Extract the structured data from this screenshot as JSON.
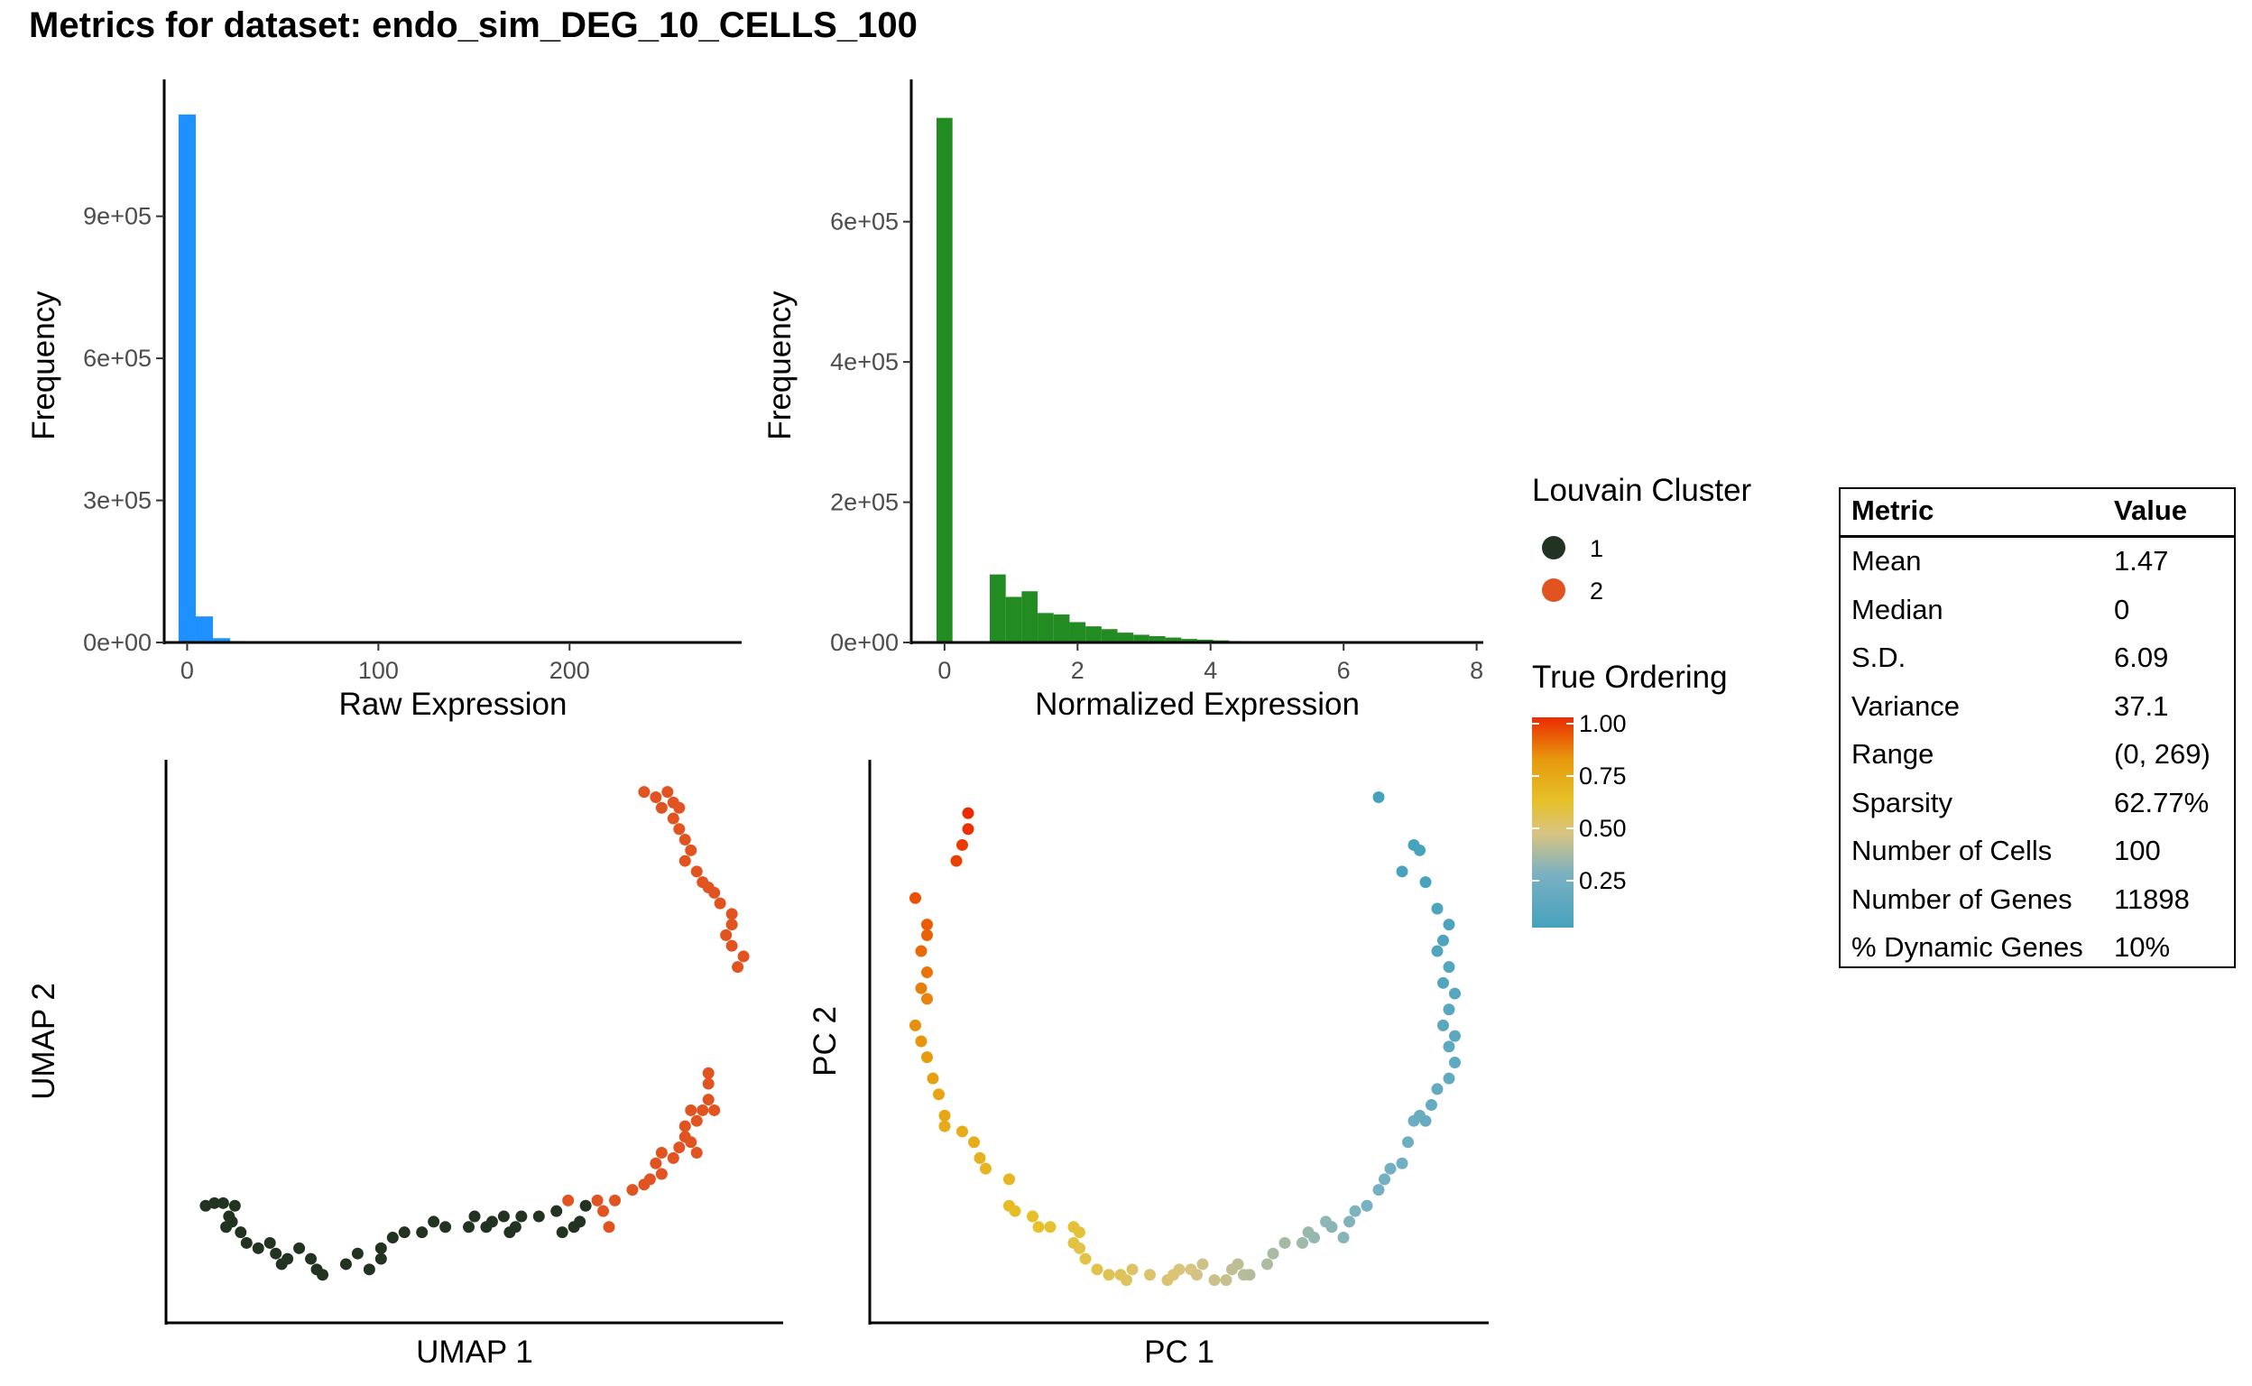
{
  "title": "Metrics for dataset: endo_sim_DEG_10_CELLS_100",
  "raw_hist": {
    "type": "bar",
    "xlabel": "Raw Expression",
    "ylabel": "Frequency",
    "color": "#1E90FF",
    "xlim": [
      -12,
      290
    ],
    "ylim": [
      0,
      1170000
    ],
    "xticks": [
      0,
      100,
      200
    ],
    "yticks": [
      0,
      300000,
      600000,
      900000
    ],
    "ytick_labels": [
      "0e+00",
      "3e+05",
      "6e+05",
      "9e+05"
    ],
    "bins": [
      {
        "x0": -4.5,
        "x1": 4.5,
        "value": 1115000
      },
      {
        "x0": 4.5,
        "x1": 13.5,
        "value": 55000
      },
      {
        "x0": 13.5,
        "x1": 22.5,
        "value": 9000
      },
      {
        "x0": 22.5,
        "x1": 31.5,
        "value": 3000
      },
      {
        "x0": 31.5,
        "x1": 40.5,
        "value": 1500
      }
    ]
  },
  "norm_hist": {
    "type": "bar",
    "xlabel": "Normalized Expression",
    "ylabel": "Frequency",
    "color": "#228B22",
    "xlim": [
      -0.5,
      8.1
    ],
    "ylim": [
      0,
      790000
    ],
    "xticks": [
      0,
      2,
      4,
      6,
      8
    ],
    "yticks": [
      0,
      200000,
      400000,
      600000
    ],
    "ytick_labels": [
      "0e+00",
      "2e+05",
      "4e+05",
      "6e+05"
    ],
    "bins": [
      {
        "x0": -0.12,
        "x1": 0.12,
        "value": 748000
      },
      {
        "x0": 0.68,
        "x1": 0.92,
        "value": 97000
      },
      {
        "x0": 0.92,
        "x1": 1.16,
        "value": 65000
      },
      {
        "x0": 1.16,
        "x1": 1.4,
        "value": 73000
      },
      {
        "x0": 1.4,
        "x1": 1.64,
        "value": 42000
      },
      {
        "x0": 1.64,
        "x1": 1.88,
        "value": 40000
      },
      {
        "x0": 1.88,
        "x1": 2.12,
        "value": 29000
      },
      {
        "x0": 2.12,
        "x1": 2.36,
        "value": 23000
      },
      {
        "x0": 2.36,
        "x1": 2.6,
        "value": 19000
      },
      {
        "x0": 2.6,
        "x1": 2.84,
        "value": 14000
      },
      {
        "x0": 2.84,
        "x1": 3.08,
        "value": 11000
      },
      {
        "x0": 3.08,
        "x1": 3.32,
        "value": 9000
      },
      {
        "x0": 3.32,
        "x1": 3.56,
        "value": 7000
      },
      {
        "x0": 3.56,
        "x1": 3.8,
        "value": 5000
      },
      {
        "x0": 3.8,
        "x1": 4.04,
        "value": 4000
      },
      {
        "x0": 4.04,
        "x1": 4.28,
        "value": 3000
      },
      {
        "x0": 4.28,
        "x1": 4.52,
        "value": 2000
      },
      {
        "x0": 4.52,
        "x1": 4.76,
        "value": 1500
      },
      {
        "x0": 4.76,
        "x1": 5.0,
        "value": 1000
      },
      {
        "x0": 5.0,
        "x1": 5.24,
        "value": 800
      },
      {
        "x0": 5.24,
        "x1": 5.48,
        "value": 600
      },
      {
        "x0": 5.48,
        "x1": 5.72,
        "value": 400
      },
      {
        "x0": 5.72,
        "x1": 5.96,
        "value": 300
      },
      {
        "x0": 5.96,
        "x1": 6.2,
        "value": 200
      }
    ]
  },
  "umap": {
    "type": "scatter",
    "xlabel": "UMAP 1",
    "ylabel": "UMAP 2",
    "xlim": [
      0,
      100
    ],
    "ylim": [
      0,
      100
    ],
    "cluster_colors": {
      "1": "#223322",
      "2": "#E15422"
    },
    "points": [
      [
        4,
        19,
        1
      ],
      [
        5.5,
        19.5,
        1
      ],
      [
        7,
        19.5,
        1
      ],
      [
        9,
        19,
        1
      ],
      [
        8,
        17,
        1
      ],
      [
        8.5,
        16,
        1
      ],
      [
        7.5,
        15,
        1
      ],
      [
        10,
        14,
        1
      ],
      [
        11,
        12,
        1
      ],
      [
        13,
        11,
        1
      ],
      [
        15,
        12,
        1
      ],
      [
        16,
        10,
        1
      ],
      [
        18,
        9,
        1
      ],
      [
        17,
        8,
        1
      ],
      [
        20,
        11,
        1
      ],
      [
        22,
        9,
        1
      ],
      [
        23,
        7,
        1
      ],
      [
        24,
        6,
        1
      ],
      [
        28,
        8,
        1
      ],
      [
        30,
        10,
        1
      ],
      [
        32,
        7,
        1
      ],
      [
        34,
        9,
        1
      ],
      [
        34,
        11,
        1
      ],
      [
        36,
        13,
        1
      ],
      [
        38,
        14,
        1
      ],
      [
        41,
        14,
        1
      ],
      [
        43,
        16,
        1
      ],
      [
        45,
        15,
        1
      ],
      [
        49,
        15,
        1
      ],
      [
        50,
        17,
        1
      ],
      [
        52,
        15,
        1
      ],
      [
        53,
        16,
        1
      ],
      [
        55,
        17,
        1
      ],
      [
        56,
        14,
        1
      ],
      [
        57,
        15,
        1
      ],
      [
        58,
        17,
        1
      ],
      [
        61,
        17,
        1
      ],
      [
        64,
        18,
        1
      ],
      [
        65,
        14,
        1
      ],
      [
        66,
        20,
        2
      ],
      [
        67,
        15,
        1
      ],
      [
        68,
        16,
        1
      ],
      [
        69,
        19,
        1
      ],
      [
        71,
        20,
        2
      ],
      [
        72,
        18,
        2
      ],
      [
        73,
        15,
        2
      ],
      [
        74,
        20,
        2
      ],
      [
        77,
        22,
        2
      ],
      [
        79,
        23,
        2
      ],
      [
        80,
        24,
        2
      ],
      [
        81,
        27,
        2
      ],
      [
        82,
        25,
        2
      ],
      [
        82,
        29,
        2
      ],
      [
        84,
        28,
        2
      ],
      [
        85,
        30,
        2
      ],
      [
        86,
        32,
        2
      ],
      [
        86,
        34,
        2
      ],
      [
        87,
        37,
        2
      ],
      [
        88,
        35,
        2
      ],
      [
        87,
        31,
        2
      ],
      [
        89,
        37,
        2
      ],
      [
        90,
        39,
        2
      ],
      [
        90,
        42,
        2
      ],
      [
        88,
        29,
        2
      ],
      [
        91,
        37,
        2
      ],
      [
        90,
        44,
        2
      ],
      [
        79,
        97,
        2
      ],
      [
        81,
        96,
        2
      ],
      [
        83,
        97,
        2
      ],
      [
        84,
        95,
        2
      ],
      [
        82,
        94,
        2
      ],
      [
        85,
        94,
        2
      ],
      [
        84,
        92,
        2
      ],
      [
        85,
        90,
        2
      ],
      [
        86,
        88,
        2
      ],
      [
        87,
        86,
        2
      ],
      [
        86,
        84,
        2
      ],
      [
        88,
        82,
        2
      ],
      [
        89,
        80,
        2
      ],
      [
        90,
        79,
        2
      ],
      [
        91,
        78,
        2
      ],
      [
        92,
        76,
        2
      ],
      [
        94,
        74,
        2
      ],
      [
        94,
        72,
        2
      ],
      [
        93,
        70,
        2
      ],
      [
        94,
        68,
        2
      ],
      [
        96,
        66,
        2
      ],
      [
        95,
        64,
        2
      ]
    ]
  },
  "pca": {
    "type": "scatter",
    "xlabel": "PC 1",
    "ylabel": "PC 2",
    "xlim": [
      0,
      100
    ],
    "ylim": [
      0,
      100
    ],
    "color_scale": {
      "stops": [
        {
          "t": 0.0,
          "color": "#46A2BC"
        },
        {
          "t": 0.25,
          "color": "#78B1C2"
        },
        {
          "t": 0.45,
          "color": "#D9C481"
        },
        {
          "t": 0.6,
          "color": "#E6C12A"
        },
        {
          "t": 0.8,
          "color": "#E79A0D"
        },
        {
          "t": 1.0,
          "color": "#EC2A00"
        }
      ]
    },
    "points": [
      [
        14,
        93,
        1.0
      ],
      [
        14,
        90,
        0.99
      ],
      [
        13,
        87,
        0.97
      ],
      [
        12,
        84,
        0.96
      ],
      [
        5,
        77,
        0.93
      ],
      [
        7,
        72,
        0.91
      ],
      [
        7,
        70,
        0.9
      ],
      [
        6,
        67,
        0.89
      ],
      [
        7,
        63,
        0.87
      ],
      [
        6,
        60,
        0.85
      ],
      [
        7,
        58,
        0.84
      ],
      [
        5,
        53,
        0.82
      ],
      [
        6,
        50,
        0.81
      ],
      [
        7,
        47,
        0.79
      ],
      [
        8,
        43,
        0.77
      ],
      [
        9,
        40,
        0.75
      ],
      [
        10,
        36,
        0.74
      ],
      [
        10,
        34,
        0.72
      ],
      [
        13,
        33,
        0.71
      ],
      [
        15,
        31,
        0.7
      ],
      [
        16,
        28,
        0.68
      ],
      [
        17,
        26,
        0.66
      ],
      [
        21,
        24,
        0.65
      ],
      [
        21,
        19,
        0.63
      ],
      [
        22,
        18,
        0.62
      ],
      [
        25,
        17,
        0.61
      ],
      [
        26,
        15,
        0.6
      ],
      [
        28,
        15,
        0.59
      ],
      [
        32,
        15,
        0.58
      ],
      [
        33,
        14,
        0.57
      ],
      [
        32,
        12,
        0.56
      ],
      [
        33,
        11,
        0.55
      ],
      [
        34,
        9,
        0.55
      ],
      [
        36,
        7,
        0.54
      ],
      [
        38,
        6,
        0.53
      ],
      [
        40,
        6,
        0.52
      ],
      [
        41,
        5,
        0.51
      ],
      [
        42,
        7,
        0.5
      ],
      [
        45,
        6,
        0.49
      ],
      [
        48,
        5,
        0.48
      ],
      [
        49,
        6,
        0.47
      ],
      [
        50,
        7,
        0.46
      ],
      [
        52,
        7,
        0.45
      ],
      [
        53,
        6,
        0.44
      ],
      [
        54,
        8,
        0.43
      ],
      [
        56,
        5,
        0.42
      ],
      [
        58,
        5,
        0.41
      ],
      [
        59,
        7,
        0.4
      ],
      [
        60,
        8,
        0.39
      ],
      [
        61,
        6,
        0.38
      ],
      [
        62,
        6,
        0.37
      ],
      [
        65,
        8,
        0.36
      ],
      [
        66,
        10,
        0.35
      ],
      [
        68,
        12,
        0.34
      ],
      [
        71,
        12,
        0.33
      ],
      [
        72,
        14,
        0.32
      ],
      [
        73,
        13,
        0.31
      ],
      [
        75,
        16,
        0.3
      ],
      [
        76,
        15,
        0.29
      ],
      [
        78,
        13,
        0.28
      ],
      [
        79,
        16,
        0.27
      ],
      [
        80,
        18,
        0.26
      ],
      [
        82,
        19,
        0.25
      ],
      [
        84,
        22,
        0.24
      ],
      [
        85,
        24,
        0.23
      ],
      [
        86,
        26,
        0.22
      ],
      [
        88,
        27,
        0.21
      ],
      [
        89,
        31,
        0.2
      ],
      [
        90,
        35,
        0.19
      ],
      [
        91,
        36,
        0.18
      ],
      [
        92,
        35,
        0.17
      ],
      [
        93,
        38,
        0.16
      ],
      [
        94,
        41,
        0.15
      ],
      [
        96,
        43,
        0.14
      ],
      [
        97,
        46,
        0.13
      ],
      [
        96,
        49,
        0.12
      ],
      [
        97,
        51,
        0.11
      ],
      [
        95,
        53,
        0.1
      ],
      [
        96,
        56,
        0.09
      ],
      [
        97,
        59,
        0.08
      ],
      [
        95,
        61,
        0.07
      ],
      [
        96,
        64,
        0.06
      ],
      [
        94,
        67,
        0.05
      ],
      [
        95,
        69,
        0.04
      ],
      [
        96,
        72,
        0.03
      ],
      [
        94,
        75,
        0.03
      ],
      [
        92,
        80,
        0.02
      ],
      [
        88,
        82,
        0.02
      ],
      [
        90,
        87,
        0.01
      ],
      [
        91,
        86,
        0.01
      ],
      [
        84,
        96,
        0.0
      ]
    ]
  },
  "legend_cluster": {
    "title": "Louvain Cluster",
    "items": [
      {
        "label": "1",
        "color": "#223322"
      },
      {
        "label": "2",
        "color": "#E15422"
      }
    ]
  },
  "legend_ordering": {
    "title": "True Ordering",
    "ticks": [
      "1.00",
      "0.75",
      "0.50",
      "0.25"
    ]
  },
  "metrics": {
    "header_metric": "Metric",
    "header_value": "Value",
    "rows": [
      {
        "metric": "Mean",
        "value": "1.47"
      },
      {
        "metric": "Median",
        "value": "0"
      },
      {
        "metric": "S.D.",
        "value": "6.09"
      },
      {
        "metric": "Variance",
        "value": "37.1"
      },
      {
        "metric": "Range",
        "value": "(0, 269)"
      },
      {
        "metric": "Sparsity",
        "value": "62.77%"
      },
      {
        "metric": "Number of Cells",
        "value": "100"
      },
      {
        "metric": "Number of Genes",
        "value": "11898"
      },
      {
        "metric": "% Dynamic Genes",
        "value": "10%"
      }
    ]
  }
}
